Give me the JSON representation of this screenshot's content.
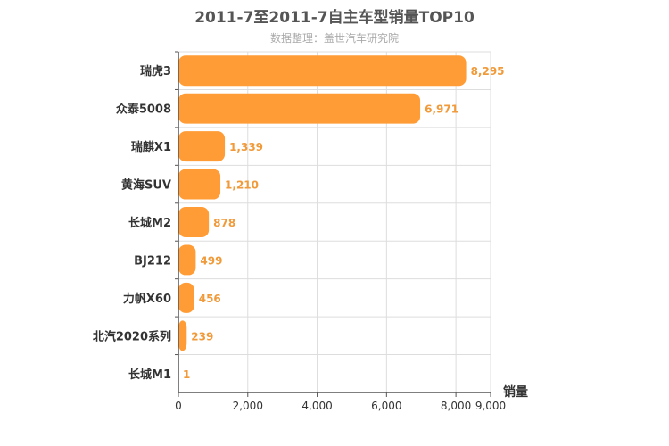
{
  "chart_data": {
    "type": "bar",
    "orientation": "horizontal",
    "title": "2011-7至2011-7自主车型销量TOP10",
    "subtitle": "数据整理：盖世汽车研究院",
    "categories": [
      "瑞虎3",
      "众泰5008",
      "瑞麒X1",
      "黄海SUV",
      "长城M2",
      "BJ212",
      "力帆X60",
      "北汽2020系列",
      "长城M1"
    ],
    "values": [
      8295,
      6971,
      1339,
      1210,
      878,
      499,
      456,
      239,
      1
    ],
    "value_labels": [
      "8,295",
      "6,971",
      "1,339",
      "1,210",
      "878",
      "499",
      "456",
      "239",
      "1"
    ],
    "xlabel": "销量",
    "xlim": [
      0,
      9000
    ],
    "xticks": [
      0,
      2000,
      4000,
      6000,
      8000,
      9000
    ],
    "xtick_labels": [
      "0",
      "2,000",
      "4,000",
      "6,000",
      "8,000",
      "9,000"
    ],
    "grid": true,
    "bar_color": "#ff9c35",
    "label_color": "#f19a3a"
  }
}
